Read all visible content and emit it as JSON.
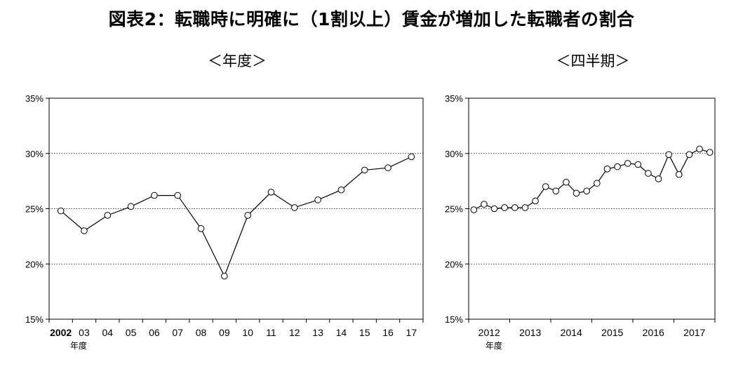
{
  "title": "図表2：転職時に明確に（1割以上）賃金が増加した転職者の割合",
  "chart_data": [
    {
      "type": "line",
      "subtitle": "＜年度＞",
      "x_unit_label": "年度",
      "categories": [
        "2002",
        "03",
        "04",
        "05",
        "06",
        "07",
        "08",
        "09",
        "10",
        "11",
        "12",
        "13",
        "14",
        "15",
        "16",
        "17"
      ],
      "series": [
        {
          "values": [
            24.8,
            23.0,
            24.4,
            25.2,
            26.2,
            26.2,
            23.2,
            18.9,
            24.4,
            26.5,
            25.1,
            25.8,
            26.7,
            28.5,
            28.7,
            29.7
          ]
        }
      ],
      "ylim": [
        15,
        35
      ],
      "yticks": [
        "15%",
        "20%",
        "25%",
        "30%",
        "35%"
      ],
      "grid": "horizontal dotted"
    },
    {
      "type": "line",
      "subtitle": "＜四半期＞",
      "x_unit_label": "年度",
      "year_labels": [
        "2012",
        "2013",
        "2014",
        "2015",
        "2016",
        "2017"
      ],
      "series": [
        {
          "values": [
            24.9,
            25.4,
            25.0,
            25.1,
            25.1,
            25.1,
            25.7,
            27.0,
            26.6,
            27.4,
            26.4,
            26.6,
            27.3,
            28.6,
            28.8,
            29.1,
            29.0,
            28.2,
            27.7,
            29.9,
            28.1,
            29.9,
            30.4,
            30.1
          ]
        }
      ],
      "ylim": [
        15,
        35
      ],
      "yticks": [
        "15%",
        "20%",
        "25%",
        "30%",
        "35%"
      ],
      "grid": "horizontal dotted"
    }
  ]
}
